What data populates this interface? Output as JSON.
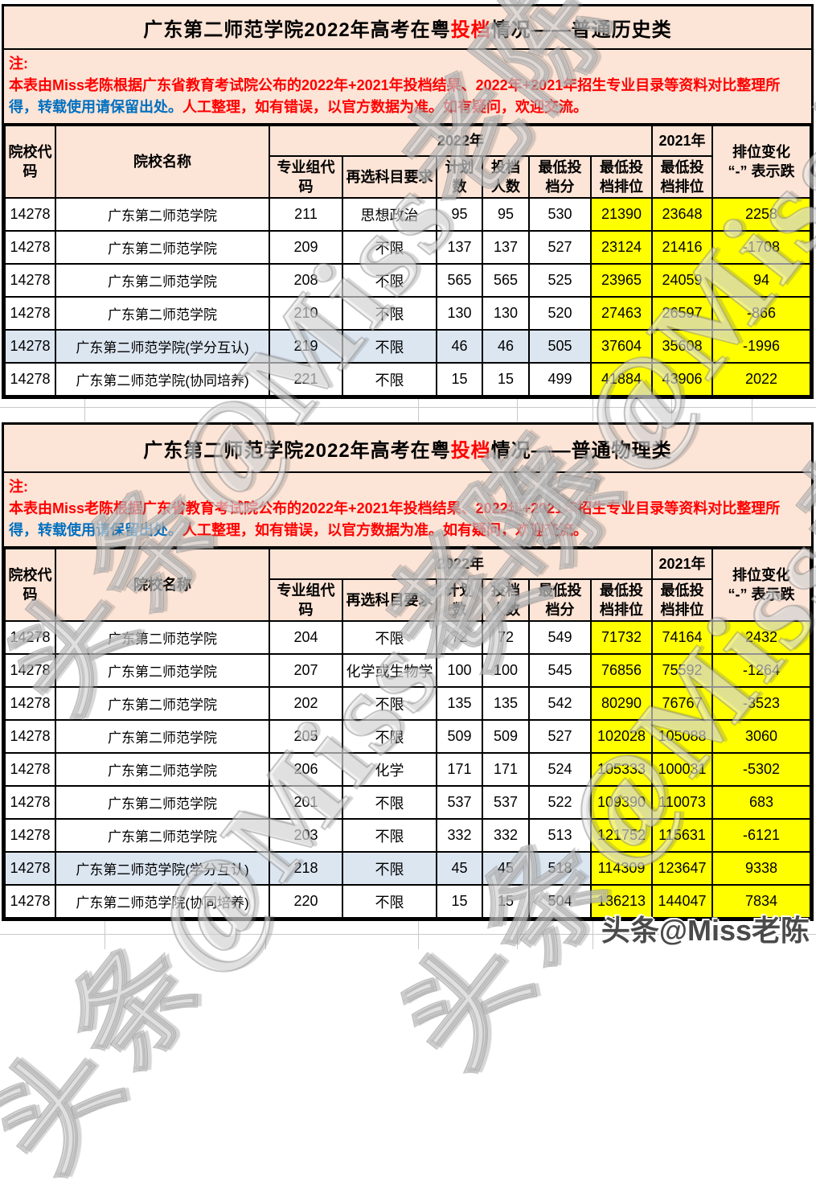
{
  "colors": {
    "header_bg": "#fce4d6",
    "rank_highlight": "#ffff00",
    "special_row": "#dce6f1",
    "note_red": "#ff0000",
    "note_blue": "#0070c0"
  },
  "watermark": {
    "diagonal_text": "头条@Miss老陈",
    "corner_text": "头条@Miss老陈"
  },
  "note": {
    "label": "注:",
    "part1_red": "本表由Miss老陈根据广东省教育考试院公布的2022年+2021年投档结果、2022年+2021年招生专业目录等资料对比整理所",
    "part2_blue": "得，转载使用请保留出处。",
    "part3_red": "人工整理，如有错误，以官方数据为准。如有疑问，欢迎交流。"
  },
  "header": {
    "college_code": "院校代码",
    "college_name": "院校名称",
    "year_2022": "2022年",
    "year_2021": "2021年",
    "group_code": "专业组代码",
    "subject_req": "再选科目要求",
    "plan_count": "计划数",
    "file_count": "投档人数",
    "min_score": "最低投档分",
    "min_rank_2022": "最低投档排位",
    "min_rank_2021": "最低投档排位",
    "rank_change_line1": "排位变化",
    "rank_change_line2": "“-” 表示跌"
  },
  "tables": [
    {
      "title_pre": "广东第二师范学院2022年高考在粤",
      "title_highlight": "投档",
      "title_post": "情况——普通历史类",
      "rows": [
        {
          "highlight": false,
          "cells": [
            "14278",
            "广东第二师范学院",
            "211",
            "思想政治",
            "95",
            "95",
            "530",
            "21390",
            "23648",
            "2258"
          ]
        },
        {
          "highlight": false,
          "cells": [
            "14278",
            "广东第二师范学院",
            "209",
            "不限",
            "137",
            "137",
            "527",
            "23124",
            "21416",
            "-1708"
          ]
        },
        {
          "highlight": false,
          "cells": [
            "14278",
            "广东第二师范学院",
            "208",
            "不限",
            "565",
            "565",
            "525",
            "23965",
            "24059",
            "94"
          ]
        },
        {
          "highlight": false,
          "cells": [
            "14278",
            "广东第二师范学院",
            "210",
            "不限",
            "130",
            "130",
            "520",
            "27463",
            "26597",
            "-866"
          ]
        },
        {
          "highlight": true,
          "cells": [
            "14278",
            "广东第二师范学院(学分互认)",
            "219",
            "不限",
            "46",
            "46",
            "505",
            "37604",
            "35608",
            "-1996"
          ]
        },
        {
          "highlight": false,
          "cells": [
            "14278",
            "广东第二师范学院(协同培养)",
            "221",
            "不限",
            "15",
            "15",
            "499",
            "41884",
            "43906",
            "2022"
          ]
        }
      ]
    },
    {
      "title_pre": "广东第二师范学院2022年高考在粤",
      "title_highlight": "投档",
      "title_post": "情况——普通物理类",
      "rows": [
        {
          "highlight": false,
          "cells": [
            "14278",
            "广东第二师范学院",
            "204",
            "不限",
            "72",
            "72",
            "549",
            "71732",
            "74164",
            "2432"
          ]
        },
        {
          "highlight": false,
          "cells": [
            "14278",
            "广东第二师范学院",
            "207",
            "化学或生物学",
            "100",
            "100",
            "545",
            "76856",
            "75592",
            "-1264"
          ]
        },
        {
          "highlight": false,
          "cells": [
            "14278",
            "广东第二师范学院",
            "202",
            "不限",
            "135",
            "135",
            "542",
            "80290",
            "76767",
            "-3523"
          ]
        },
        {
          "highlight": false,
          "cells": [
            "14278",
            "广东第二师范学院",
            "205",
            "不限",
            "509",
            "509",
            "527",
            "102028",
            "105088",
            "3060"
          ]
        },
        {
          "highlight": false,
          "cells": [
            "14278",
            "广东第二师范学院",
            "206",
            "化学",
            "171",
            "171",
            "524",
            "105333",
            "100031",
            "-5302"
          ]
        },
        {
          "highlight": false,
          "cells": [
            "14278",
            "广东第二师范学院",
            "201",
            "不限",
            "537",
            "537",
            "522",
            "109390",
            "110073",
            "683"
          ]
        },
        {
          "highlight": false,
          "cells": [
            "14278",
            "广东第二师范学院",
            "203",
            "不限",
            "332",
            "332",
            "513",
            "121752",
            "115631",
            "-6121"
          ]
        },
        {
          "highlight": true,
          "cells": [
            "14278",
            "广东第二师范学院(学分互认)",
            "218",
            "不限",
            "45",
            "45",
            "518",
            "114309",
            "123647",
            "9338"
          ]
        },
        {
          "highlight": false,
          "cells": [
            "14278",
            "广东第二师范学院(协同培养)",
            "220",
            "不限",
            "15",
            "15",
            "504",
            "136213",
            "144047",
            "7834"
          ]
        }
      ]
    }
  ]
}
